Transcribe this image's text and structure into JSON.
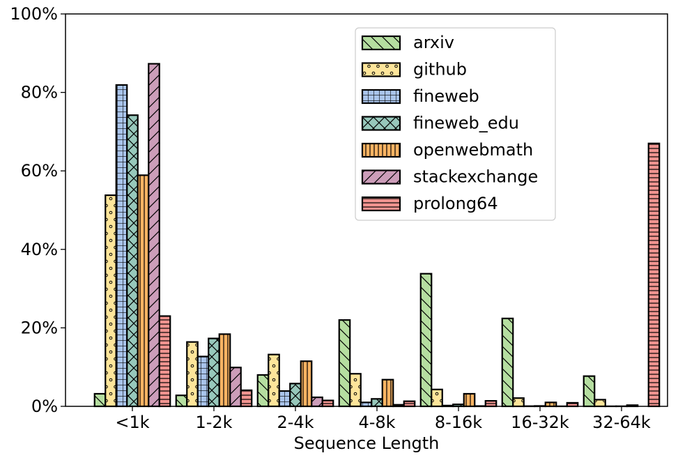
{
  "chart_data": {
    "type": "bar",
    "title": "",
    "xlabel": "Sequence Length",
    "ylabel": "",
    "ylim": [
      0,
      100
    ],
    "yticks": [
      "0%",
      "20%",
      "40%",
      "60%",
      "80%",
      "100%"
    ],
    "ytick_values": [
      0,
      20,
      40,
      60,
      80,
      100
    ],
    "categories": [
      "<1k",
      "1-2k",
      "2-4k",
      "4-8k",
      "8-16k",
      "16-32k",
      "32-64k"
    ],
    "legend_position": "top-right",
    "series": [
      {
        "name": "arxiv",
        "color": "#b5dea0",
        "hatch": "backslash",
        "values": [
          3.2,
          2.8,
          8.0,
          22.0,
          33.8,
          22.4,
          7.7
        ]
      },
      {
        "name": "github",
        "color": "#fde59a",
        "hatch": "dots",
        "values": [
          53.8,
          16.4,
          13.2,
          8.3,
          4.3,
          2.1,
          1.7
        ]
      },
      {
        "name": "fineweb",
        "color": "#a9c4eb",
        "hatch": "grid",
        "values": [
          81.9,
          12.7,
          3.9,
          1.0,
          0.2,
          0.05,
          0.02
        ]
      },
      {
        "name": "fineweb_edu",
        "color": "#97c8bb",
        "hatch": "cross",
        "values": [
          74.2,
          17.3,
          5.8,
          1.9,
          0.5,
          0.1,
          0.03
        ]
      },
      {
        "name": "openwebmath",
        "color": "#fbb463",
        "hatch": "vertical",
        "values": [
          58.9,
          18.4,
          11.5,
          6.8,
          3.2,
          1.0,
          0.3
        ]
      },
      {
        "name": "stackexchange",
        "color": "#cc9db9",
        "hatch": "slash",
        "values": [
          87.3,
          9.9,
          2.3,
          0.4,
          0.08,
          0.02,
          0.0
        ]
      },
      {
        "name": "prolong64",
        "color": "#f19490",
        "hatch": "horizontal",
        "values": [
          23.0,
          4.1,
          1.5,
          1.3,
          1.4,
          0.9,
          67.0
        ]
      }
    ]
  }
}
